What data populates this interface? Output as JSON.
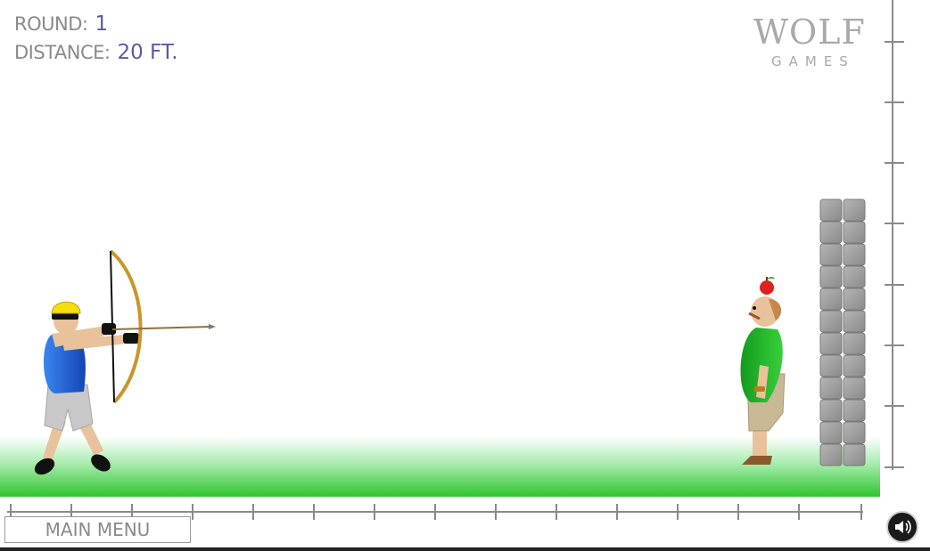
{
  "hud": {
    "round_label": "ROUND:",
    "round_value": "1",
    "distance_label": "DISTANCE:",
    "distance_value": "20 FT."
  },
  "logo": {
    "word": "WOLF",
    "sub": "GAMES"
  },
  "buttons": {
    "main_menu": "MAIN MENU"
  },
  "icons": {
    "sound": "speaker-icon",
    "logo": "wolf-head-icon"
  },
  "colors": {
    "hud_label": "#8a8a8a",
    "hud_value": "#5a5aa8",
    "grass": "#33cc33",
    "shirt_archer": "#1f5fd6",
    "shirt_target": "#22b022",
    "helmet": "#f5dd10",
    "bow": "#c8962a",
    "apple": "#e02020",
    "stone": "#9a9a9a"
  }
}
